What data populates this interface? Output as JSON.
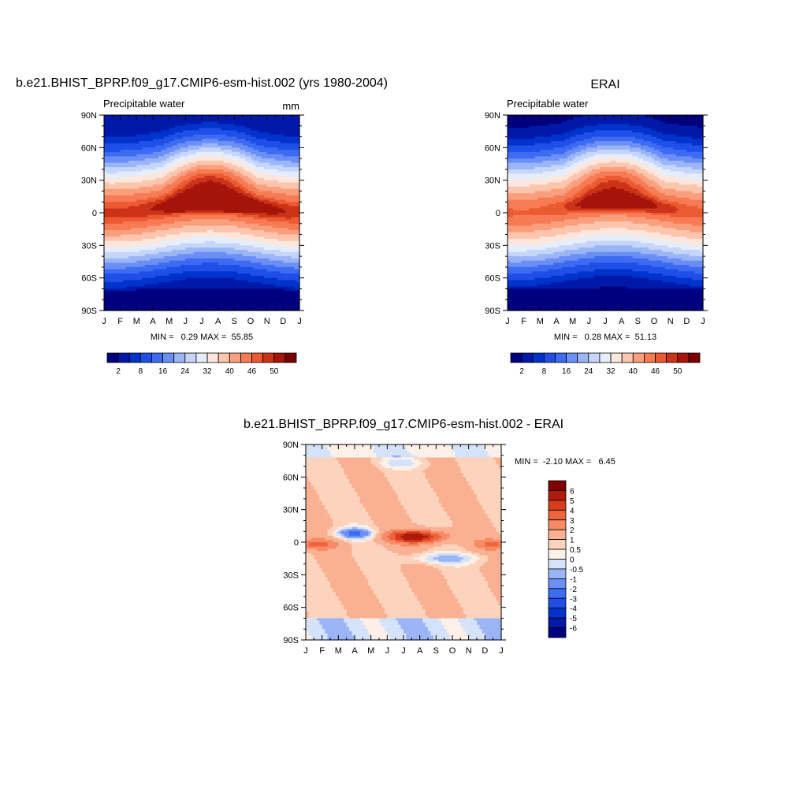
{
  "chart_data": [
    {
      "type": "heatmap",
      "title": "b.e21.BHIST_BPRP.f09_g17.CMIP6-esm-hist.002 (yrs 1980-2004)",
      "subtitle_left": "Precipitable water",
      "subtitle_right": "mm",
      "stats": "MIN =   0.29 MAX =  55.85",
      "x_ticks": [
        "J",
        "F",
        "M",
        "A",
        "M",
        "J",
        "J",
        "A",
        "S",
        "O",
        "N",
        "D",
        "J"
      ],
      "y_ticks": [
        "90N",
        "60N",
        "30N",
        "0",
        "30S",
        "60S",
        "90S"
      ],
      "xlim": [
        0,
        12
      ],
      "ylim": [
        -90,
        90
      ],
      "value_range": [
        0.29,
        55.85
      ],
      "field": {
        "itcz_peak": 55.0,
        "equator_base": 47.0,
        "summer_lat_shift": 10,
        "pole_value": 2.0
      }
    },
    {
      "type": "heatmap",
      "title": "ERAI",
      "subtitle_left": "Precipitable water",
      "stats": "MIN =   0.28 MAX =  51.13",
      "x_ticks": [
        "J",
        "F",
        "M",
        "A",
        "M",
        "J",
        "J",
        "A",
        "S",
        "O",
        "N",
        "D",
        "J"
      ],
      "y_ticks": [
        "90N",
        "60N",
        "30N",
        "0",
        "30S",
        "60S",
        "90S"
      ],
      "xlim": [
        0,
        12
      ],
      "ylim": [
        -90,
        90
      ],
      "value_range": [
        0.28,
        51.13
      ],
      "field": {
        "itcz_peak": 51.0,
        "equator_base": 45.0,
        "summer_lat_shift": 10,
        "pole_value": 1.5
      }
    },
    {
      "type": "heatmap",
      "title": "b.e21.BHIST_BPRP.f09_g17.CMIP6-esm-hist.002 - ERAI",
      "stats": "MIN =  -2.10 MAX =   6.45",
      "x_ticks": [
        "J",
        "F",
        "M",
        "A",
        "M",
        "J",
        "J",
        "A",
        "S",
        "O",
        "N",
        "D",
        "J"
      ],
      "y_ticks": [
        "90N",
        "60N",
        "30N",
        "0",
        "30S",
        "60S",
        "90S"
      ],
      "xlim": [
        0,
        12
      ],
      "ylim": [
        -90,
        90
      ],
      "value_range": [
        -2.1,
        6.45
      ]
    }
  ],
  "colorbars": {
    "main": {
      "levels": [
        2,
        5,
        8,
        12,
        16,
        20,
        24,
        28,
        32,
        36,
        40,
        43,
        46,
        48,
        50
      ],
      "labels": [
        "2",
        "8",
        "16",
        "24",
        "32",
        "40",
        "46",
        "50"
      ],
      "colors": [
        "#00007f",
        "#0019a8",
        "#0033cc",
        "#1f4fe6",
        "#3d6bf2",
        "#6b8ff5",
        "#9cb5f7",
        "#c6d6fa",
        "#e6eefc",
        "#fde7dc",
        "#fcc5ad",
        "#fa9f7e",
        "#f77b54",
        "#eb5a31",
        "#cc3318",
        "#a5150a",
        "#7a0000"
      ]
    },
    "diff": {
      "levels": [
        -6,
        -5,
        -4,
        -3,
        -2,
        -1,
        -0.5,
        0,
        0.5,
        1,
        2,
        3,
        4,
        5,
        6
      ],
      "labels": [
        "6",
        "5",
        "4",
        "3",
        "2",
        "1",
        "0.5",
        "0",
        "-0.5",
        "-1",
        "-2",
        "-3",
        "-4",
        "-5",
        "-6"
      ],
      "colors": [
        "#00007f",
        "#0019a8",
        "#0033cc",
        "#1f4fe6",
        "#3d6bf2",
        "#6b8ff5",
        "#9cb5f7",
        "#d4e3fa",
        "#fdf0e8",
        "#fcd4bd",
        "#fab092",
        "#f78b66",
        "#ee643c",
        "#d63d1c",
        "#b01a0b",
        "#800000"
      ]
    }
  }
}
